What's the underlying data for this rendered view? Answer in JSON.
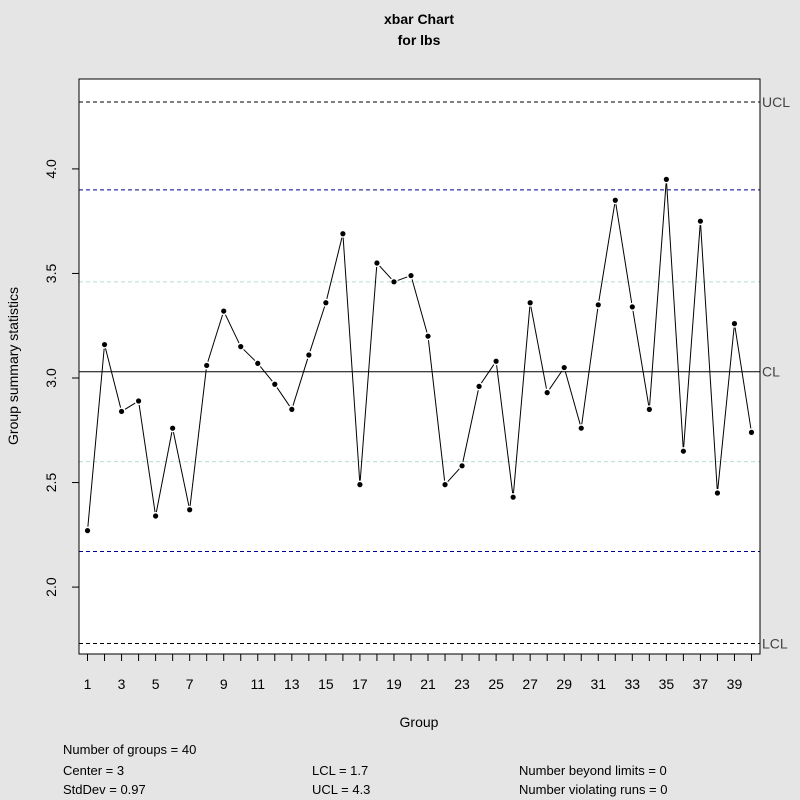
{
  "chart_data": {
    "type": "line",
    "title": "xbar Chart",
    "subtitle": "for lbs",
    "xlabel": "Group",
    "ylabel": "Group summary statistics",
    "xlim": [
      0.5,
      40.5
    ],
    "ylim": [
      1.68,
      4.43
    ],
    "x_ticks": [
      1,
      2,
      3,
      4,
      5,
      6,
      7,
      8,
      9,
      10,
      11,
      12,
      13,
      14,
      15,
      16,
      17,
      18,
      19,
      20,
      21,
      22,
      23,
      24,
      25,
      26,
      27,
      28,
      29,
      30,
      31,
      32,
      33,
      34,
      35,
      36,
      37,
      38,
      39,
      40
    ],
    "x_tick_labels": [
      "1",
      "3",
      "5",
      "7",
      "9",
      "11",
      "13",
      "15",
      "17",
      "19",
      "21",
      "23",
      "25",
      "27",
      "29",
      "31",
      "33",
      "35",
      "37",
      "39"
    ],
    "y_ticks": [
      "2.0",
      "2.5",
      "3.0",
      "3.5",
      "4.0"
    ],
    "x": [
      1,
      2,
      3,
      4,
      5,
      6,
      7,
      8,
      9,
      10,
      11,
      12,
      13,
      14,
      15,
      16,
      17,
      18,
      19,
      20,
      21,
      22,
      23,
      24,
      25,
      26,
      27,
      28,
      29,
      30,
      31,
      32,
      33,
      34,
      35,
      36,
      37,
      38,
      39,
      40
    ],
    "values": [
      2.27,
      3.16,
      2.84,
      2.89,
      2.34,
      2.76,
      2.37,
      3.06,
      3.32,
      3.15,
      3.07,
      2.97,
      2.85,
      3.11,
      3.36,
      3.69,
      2.49,
      3.55,
      3.46,
      3.49,
      3.2,
      2.49,
      2.58,
      2.96,
      3.08,
      2.43,
      3.36,
      2.93,
      3.05,
      2.76,
      3.35,
      3.85,
      3.34,
      2.85,
      3.95,
      2.65,
      3.75,
      2.45,
      3.26,
      2.74
    ],
    "reference_lines": [
      {
        "label": "UCL",
        "value": 4.32,
        "style": "dashed",
        "color": "#000000"
      },
      {
        "label": "",
        "value": 3.9,
        "style": "dashed",
        "color": "#00008b"
      },
      {
        "label": "",
        "value": 3.46,
        "style": "dashed",
        "color": "#b4dcd2"
      },
      {
        "label": "CL",
        "value": 3.03,
        "style": "solid",
        "color": "#000000"
      },
      {
        "label": "",
        "value": 2.6,
        "style": "dashed",
        "color": "#b4dcd2"
      },
      {
        "label": "",
        "value": 2.17,
        "style": "dashed",
        "color": "#00008b"
      },
      {
        "label": "LCL",
        "value": 1.73,
        "style": "dashed",
        "color": "#000000"
      }
    ],
    "grid": false
  },
  "stats": {
    "groups": "Number of groups = 40",
    "center": "Center = 3",
    "stddev": "StdDev = 0.97",
    "lcl": "LCL = 1.7",
    "ucl": "UCL = 4.3",
    "beyond": "Number beyond limits = 0",
    "violating": "Number violating runs = 0"
  }
}
